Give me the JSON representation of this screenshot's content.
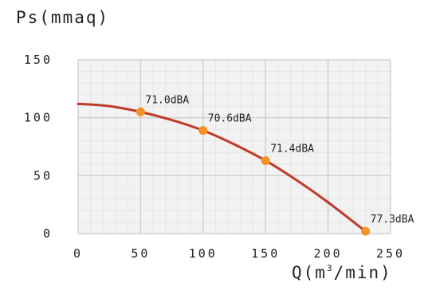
{
  "chart_data": {
    "type": "line",
    "ylabel": "Ps(mmaq)",
    "xlabel_pre": "Q(m",
    "xlabel_sup": "3",
    "xlabel_post": "/min)",
    "xlim": [
      0,
      250
    ],
    "ylim": [
      0,
      150
    ],
    "xticks": [
      "0",
      "50",
      "100",
      "150",
      "200",
      "250"
    ],
    "yticks": [
      "0",
      "50",
      "100",
      "150"
    ],
    "grid": true,
    "colors": {
      "grid": "#cfcfcf",
      "grid_minor": "#e6e6e6",
      "plot_bg": "#f2f2f2",
      "curve": "#c0392b",
      "point": "#f39321"
    },
    "curve": {
      "x": [
        0,
        25,
        50,
        75,
        100,
        125,
        150,
        175,
        200,
        230
      ],
      "y": [
        112,
        110,
        105,
        98,
        89,
        77,
        63,
        46,
        27,
        2
      ]
    },
    "points": [
      {
        "x": 50,
        "y": 105,
        "label": "71.0dBA"
      },
      {
        "x": 100,
        "y": 89,
        "label": "70.6dBA"
      },
      {
        "x": 150,
        "y": 63,
        "label": "71.4dBA"
      },
      {
        "x": 230,
        "y": 2,
        "label": "77.3dBA"
      }
    ]
  }
}
